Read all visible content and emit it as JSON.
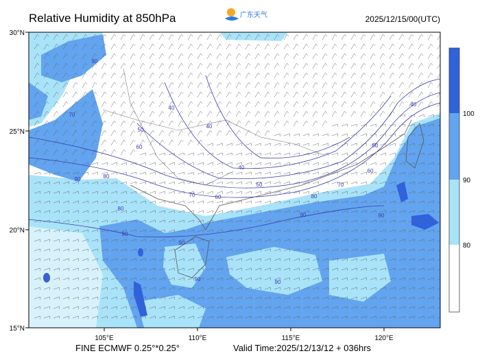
{
  "header": {
    "title": "Relative Humidity at 850hPa",
    "logo": "广东天气",
    "time": "2025/12/15/00(UTC)"
  },
  "map": {
    "lat_labels": [
      "30°N",
      "25°N",
      "20°N",
      "15°N"
    ],
    "lon_labels": [
      "105°E",
      "110°E",
      "115°E",
      "120°E"
    ],
    "contour_labels": [
      "90",
      "90",
      "70",
      "80",
      "40",
      "50",
      "60",
      "40",
      "40",
      "50",
      "60",
      "70",
      "80",
      "90",
      "40",
      "50",
      "60",
      "70",
      "80",
      "90",
      "90",
      "90",
      "90",
      "90"
    ]
  },
  "legend": {
    "labels": [
      "100",
      "90",
      "80"
    ]
  },
  "footer": {
    "model": "FINE ECMWF 0.25°*0.25°",
    "valid_time": "Valid Time:2025/12/13/12 + 036hrs"
  }
}
